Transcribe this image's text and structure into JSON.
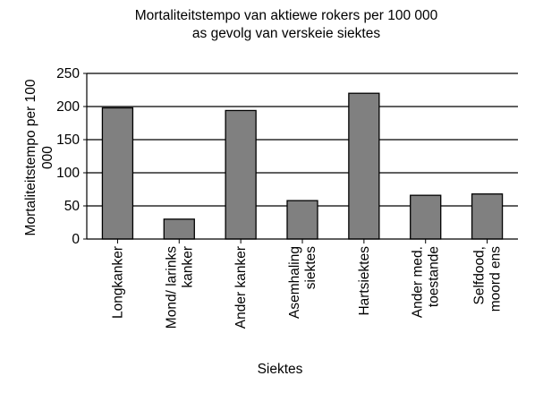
{
  "chart_data": {
    "type": "bar",
    "title_lines": [
      "Mortaliteitstempo van aktiewe rokers per 100 000",
      "as gevolg van verskeie siektes"
    ],
    "xlabel": "Siektes",
    "ylabel_lines": [
      "Mortaliteitstempo per 100",
      "000"
    ],
    "ylim": [
      0,
      250
    ],
    "yticks": [
      0,
      50,
      100,
      150,
      200,
      250
    ],
    "grid": true,
    "categories": [
      [
        "Longkanker"
      ],
      [
        "Mond/ larinks",
        "kanker"
      ],
      [
        "Ander kanker"
      ],
      [
        "Asemhaling",
        "siektes"
      ],
      [
        "Hartsiektes"
      ],
      [
        "Ander med.",
        "toestande"
      ],
      [
        "Selfdood,",
        "moord ens"
      ]
    ],
    "values": [
      198,
      30,
      194,
      58,
      220,
      66,
      68
    ],
    "colors": {
      "bar": "#808080",
      "bar_stroke": "#000000",
      "grid": "#000000"
    }
  }
}
